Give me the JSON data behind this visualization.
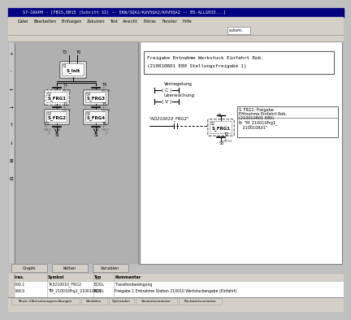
{
  "title": "S7-GRAPH - [FB15,DB15 (Schritt S2) -- EKW/SQA2/KAV5QA2/KAV5QA2 -- B5-ALLG035...]",
  "menu_items": [
    "Datei",
    "Bearbeiten",
    "Einfuegen",
    "Zukuiren",
    "Test",
    "Ansicht",
    "Extras",
    "Fenster",
    "Hilfe"
  ],
  "bg_color": "#c0c0c0",
  "left_panel_bg": "#b0b0b0",
  "right_panel_bg": "#ffffff",
  "title_bar_color": "#000080",
  "menu_bar_color": "#d4d0c8",
  "toolbar_color": "#d4d0c8",
  "comment_box_text_line1": "Freigabe Entnahme Werkstuck Einfahrt Rob.",
  "comment_box_text_line2": "(210010R01 E80 Stellungsfreigabe 1)",
  "transition_label1": "Verriegelung",
  "transition_symbol1": "( C )",
  "transition_label2": "Uberwachung",
  "transition_symbol2": "( V )",
  "signal_label": "\"AD210010_FRG2\"",
  "action_line1": "S_FRG1: Freigabe",
  "action_line2": "Entnahme Einfahrt Rob.",
  "action_line3": "(210010R01 E80)",
  "action_line4": "N  \"M_210010Frg1_",
  "action_line5": "   210010R01\"",
  "tabs": [
    "Graphi",
    "Ketten",
    "Variablen"
  ],
  "bottom_tabs": [
    "(Ruck-)Ubersetzungsmeldungen",
    "Variablen",
    "Operanden",
    "Vorwartsverweise",
    "Ruckwartsverweise"
  ],
  "table_headers": [
    "Adres.",
    "Symbol",
    "Typ",
    "Kommentar"
  ],
  "table_row1_col1": "M200.1",
  "table_row1_col2": "TA3210010_FRG2",
  "table_row1_col3": "BOOL",
  "table_row1_col4": "Transitionbedingung",
  "table_row2_col1": "M068.0",
  "table_row2_col2": "TM_210010Frg1_210010R01",
  "table_row2_col3": "BOOL",
  "table_row2_col4": "Freigabe 1 Entnahme Station 210010 Wertstuckengabe (Einfahrt)",
  "automode_text": "autom."
}
